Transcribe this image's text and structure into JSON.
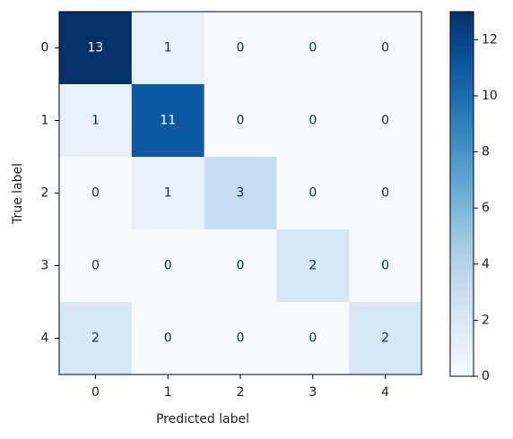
{
  "chart_data": {
    "type": "heatmap",
    "x_label": "Predicted label",
    "y_label": "True label",
    "x_categories": [
      "0",
      "1",
      "2",
      "3",
      "4"
    ],
    "y_categories": [
      "0",
      "1",
      "2",
      "3",
      "4"
    ],
    "values": [
      [
        13,
        1,
        0,
        0,
        0
      ],
      [
        1,
        11,
        0,
        0,
        0
      ],
      [
        0,
        1,
        3,
        0,
        0
      ],
      [
        0,
        0,
        0,
        2,
        0
      ],
      [
        2,
        0,
        0,
        0,
        2
      ]
    ],
    "clim": [
      0,
      13
    ],
    "cticks": [
      0,
      2,
      4,
      6,
      8,
      10,
      12
    ],
    "colormap": [
      "#f7fbff",
      "#deebf7",
      "#c6dbef",
      "#9ecae1",
      "#6baed6",
      "#4292c6",
      "#2171b5",
      "#08519c",
      "#08306b"
    ],
    "text_colors": [
      "#08306b",
      "#ffffff"
    ]
  }
}
